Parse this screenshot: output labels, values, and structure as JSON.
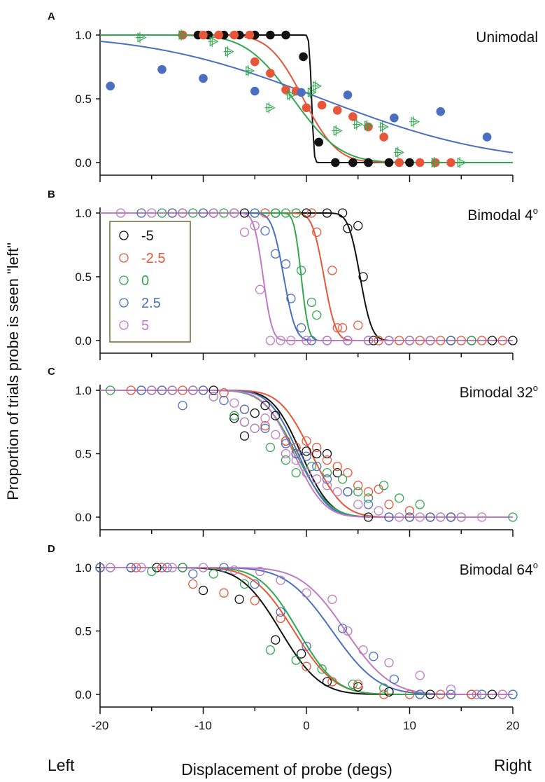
{
  "figure": {
    "ylabel": "Proportion of trials probe is seen \"left\"",
    "xlabel": "Displacement of probe (degs)",
    "left_label": "Left",
    "right_label": "Right",
    "xticks": [
      "-20",
      "-10",
      "0",
      "10",
      "20"
    ],
    "xlim": [
      -20,
      20
    ],
    "ylim": [
      0,
      1
    ],
    "colors": {
      "-5": "#111111",
      "-2.5": "#e8563a",
      "0": "#2fa84f",
      "2.5": "#4a6fc0",
      "5": "#c07ac4"
    }
  },
  "chart_data": [
    {
      "type": "scatter",
      "panel_letter": "A",
      "title": "Unimodal",
      "title_sup": "",
      "yticks": [
        "0.0",
        "0.5",
        "1.0"
      ],
      "xlim": [
        -20,
        20
      ],
      "ylim": [
        0,
        1
      ],
      "series": [
        {
          "key": "black",
          "color": "#111111",
          "marker": "filled",
          "mu": 0.5,
          "sigma": 0.18,
          "x": [
            -12,
            -10.5,
            -9.5,
            -8,
            -6.5,
            -5,
            -3.5,
            -2,
            -0.3,
            1.2,
            2.8,
            4.5,
            6,
            8,
            10
          ],
          "y": [
            1,
            1,
            1,
            1,
            1,
            1,
            1,
            1,
            0.83,
            0.16,
            0,
            0,
            0,
            0,
            0
          ]
        },
        {
          "key": "orange",
          "color": "#e8563a",
          "marker": "filled",
          "mu": -0.3,
          "sigma": 2.6,
          "x": [
            -12,
            -10,
            -8.5,
            -7,
            -5.5,
            -5,
            -3.5,
            -2,
            -1,
            0,
            1.5,
            3,
            4.5,
            6,
            7.5,
            9,
            11,
            12.5,
            14
          ],
          "y": [
            1,
            1,
            1,
            1,
            1,
            0.79,
            0.7,
            0.57,
            0.56,
            0.43,
            0.45,
            0.41,
            0.36,
            0.28,
            0.2,
            0,
            0,
            0,
            0
          ]
        },
        {
          "key": "green",
          "color": "#2fa84f",
          "marker": "triangle",
          "mu": -1.3,
          "sigma": 3.6,
          "x": [
            -16,
            -12,
            -9,
            -7.5,
            -5.5,
            -3.5,
            -1.5,
            0.5,
            1,
            3,
            5,
            6,
            7.5,
            9,
            10.5,
            12.5,
            15
          ],
          "y": [
            0.98,
            1,
            0.95,
            0.87,
            0.72,
            0.43,
            0.53,
            0.55,
            0.6,
            0.25,
            0.3,
            0.29,
            0.28,
            0.08,
            0.32,
            0,
            0
          ]
        },
        {
          "key": "blue",
          "color": "#4a6fc0",
          "marker": "filled",
          "mu": 1.5,
          "sigma": 13,
          "x": [
            -19,
            -14,
            -10,
            -5,
            -0.5,
            4,
            8.5,
            13,
            17.5
          ],
          "y": [
            0.6,
            0.73,
            0.66,
            0.56,
            0.55,
            0.53,
            0.35,
            0.4,
            0.2
          ]
        }
      ]
    },
    {
      "type": "scatter",
      "panel_letter": "B",
      "title": "Bimodal 4",
      "title_sup": "o",
      "yticks": [
        "0.0",
        "0.5",
        "1.0"
      ],
      "xlim": [
        -20,
        20
      ],
      "ylim": [
        0,
        1
      ],
      "legend": {
        "placement": "top-left",
        "entries": [
          "-5",
          "-2.5",
          "0",
          "2.5",
          "5"
        ]
      },
      "series": [
        {
          "key": "-5",
          "color": "#111111",
          "marker": "open",
          "mu": 5.2,
          "sigma": 0.9,
          "x": [
            -12,
            -9,
            -6,
            -3,
            0,
            2,
            3.5,
            4,
            5,
            5.5,
            6.5,
            8,
            10,
            12,
            14,
            16,
            18,
            20
          ],
          "y": [
            1,
            1,
            1,
            1,
            1,
            1,
            1,
            0.88,
            0.9,
            0.5,
            0,
            0,
            0,
            0,
            0,
            0,
            0,
            0
          ]
        },
        {
          "key": "-2.5",
          "color": "#e8563a",
          "marker": "open",
          "mu": 1.7,
          "sigma": 0.9,
          "x": [
            -13,
            -10,
            -7,
            -4,
            -1,
            0.5,
            1,
            2.5,
            3,
            3.5,
            5,
            7,
            9,
            11,
            13,
            15,
            17,
            19
          ],
          "y": [
            1,
            1,
            1,
            1,
            1,
            1,
            0.85,
            0.55,
            0.1,
            0.1,
            0.12,
            0,
            0,
            0,
            0,
            0,
            0,
            0
          ]
        },
        {
          "key": "0",
          "color": "#2fa84f",
          "marker": "open",
          "mu": -0.5,
          "sigma": 0.55,
          "x": [
            -14,
            -11,
            -8,
            -5,
            -3,
            -2,
            -1,
            -0.5,
            0.5,
            1,
            2,
            4,
            6,
            8,
            10,
            12,
            14,
            16
          ],
          "y": [
            1,
            1,
            1,
            1,
            1,
            1,
            1,
            0.55,
            0.3,
            0.2,
            0,
            0,
            0,
            0,
            0,
            0,
            0,
            0
          ]
        },
        {
          "key": "2.5",
          "color": "#4a6fc0",
          "marker": "open",
          "mu": -2.2,
          "sigma": 0.9,
          "x": [
            -16,
            -13,
            -10,
            -7,
            -5,
            -4,
            -3,
            -2,
            -1.5,
            -0.5,
            0.5,
            2,
            4,
            6,
            8,
            10,
            12,
            14
          ],
          "y": [
            1,
            1,
            1,
            1,
            1,
            0.86,
            0.68,
            0.6,
            0.33,
            0.1,
            0,
            0,
            0,
            0,
            0,
            0,
            0,
            0
          ]
        },
        {
          "key": "5",
          "color": "#c07ac4",
          "marker": "open",
          "mu": -4.2,
          "sigma": 0.7,
          "x": [
            -18,
            -15,
            -12,
            -9,
            -7,
            -6,
            -5,
            -4.5,
            -3.5,
            -2.5,
            -1.5,
            0,
            2,
            4,
            6,
            8,
            10,
            12
          ],
          "y": [
            1,
            1,
            1,
            1,
            1,
            0.85,
            0.9,
            0.4,
            0,
            0,
            0,
            0,
            0,
            0,
            0,
            0,
            0,
            0
          ]
        }
      ]
    },
    {
      "type": "scatter",
      "panel_letter": "C",
      "title": "Bimodal 32",
      "title_sup": "o",
      "yticks": [
        "0.0",
        "0.5",
        "1.0"
      ],
      "xlim": [
        -20,
        20
      ],
      "ylim": [
        0,
        1
      ],
      "series": [
        {
          "key": "-5",
          "color": "#111111",
          "marker": "open",
          "mu": -0.5,
          "sigma": 2.2,
          "x": [
            -15,
            -13,
            -11,
            -9,
            -7,
            -6,
            -5,
            -4,
            -3,
            -2,
            -1,
            0,
            1,
            2,
            3,
            4,
            6,
            8,
            10,
            12,
            14
          ],
          "y": [
            1,
            1,
            1,
            1,
            0.78,
            0.64,
            0.82,
            0.88,
            0.8,
            0.6,
            0.5,
            0.52,
            0.5,
            0.5,
            0.35,
            0.2,
            0,
            0,
            0,
            0,
            0
          ]
        },
        {
          "key": "-2.5",
          "color": "#e8563a",
          "marker": "open",
          "mu": 0.5,
          "sigma": 2.4,
          "x": [
            -17,
            -14,
            -12,
            -10,
            -8,
            -6,
            -4,
            -2,
            -1,
            0,
            1,
            2,
            3,
            4,
            5,
            6,
            7,
            8,
            10,
            12,
            14
          ],
          "y": [
            1,
            1,
            1,
            1,
            0.98,
            0.85,
            0.72,
            0.6,
            0.55,
            0.6,
            0.55,
            0.45,
            0.4,
            0.35,
            0.25,
            0.2,
            0.22,
            0.1,
            0.05,
            0,
            0
          ]
        },
        {
          "key": "0",
          "color": "#2fa84f",
          "marker": "open",
          "mu": -1,
          "sigma": 2.5,
          "x": [
            -19,
            -16,
            -13,
            -11,
            -9,
            -7,
            -6,
            -5,
            -3.5,
            -2,
            -1,
            0.5,
            2,
            3.5,
            5,
            6,
            7.5,
            9,
            11,
            13,
            15,
            20
          ],
          "y": [
            1,
            1,
            1,
            1,
            0.95,
            0.8,
            0.75,
            0.7,
            0.55,
            0.45,
            0.35,
            0.4,
            0.35,
            0.3,
            0.2,
            0.15,
            0.25,
            0.15,
            0.1,
            0,
            0,
            0
          ]
        },
        {
          "key": "2.5",
          "color": "#4a6fc0",
          "marker": "open",
          "mu": -0.8,
          "sigma": 2.2,
          "x": [
            -16,
            -14,
            -12,
            -10,
            -8,
            -6,
            -4,
            -2,
            -1,
            0,
            1,
            2,
            4,
            6,
            8,
            10,
            12,
            14
          ],
          "y": [
            1,
            1,
            0.88,
            1,
            0.92,
            0.85,
            0.7,
            0.58,
            0.5,
            0.48,
            0.4,
            0.3,
            0.2,
            0.1,
            0,
            0,
            0,
            0
          ]
        },
        {
          "key": "5",
          "color": "#c07ac4",
          "marker": "open",
          "mu": -1.2,
          "sigma": 2.3,
          "x": [
            -15,
            -13,
            -11,
            -9,
            -7,
            -6,
            -5,
            -4,
            -3,
            -2,
            -1,
            0,
            1,
            2,
            3,
            5,
            7,
            9,
            11,
            13,
            15,
            17
          ],
          "y": [
            1,
            1,
            1,
            0.95,
            0.9,
            0.75,
            0.7,
            0.78,
            0.65,
            0.5,
            0.45,
            0.35,
            0.3,
            0.25,
            0.2,
            0.1,
            0.05,
            0,
            0,
            0,
            0,
            0
          ]
        }
      ]
    },
    {
      "type": "scatter",
      "panel_letter": "D",
      "title": "Bimodal 64",
      "title_sup": "o",
      "yticks": [
        "0.0",
        "0.5",
        "1.0"
      ],
      "xlim": [
        -20,
        20
      ],
      "ylim": [
        0,
        1
      ],
      "series": [
        {
          "key": "-5",
          "color": "#111111",
          "marker": "open",
          "mu": -2.5,
          "sigma": 3.0,
          "x": [
            -20,
            -17,
            -14.5,
            -12,
            -10,
            -6.5,
            -3,
            -0.5,
            2,
            5,
            8,
            12,
            16,
            18
          ],
          "y": [
            1,
            1,
            1,
            1,
            0.82,
            0.75,
            0.43,
            0.32,
            0.1,
            0.06,
            0.02,
            0,
            0,
            0
          ]
        },
        {
          "key": "-2.5",
          "color": "#e8563a",
          "marker": "open",
          "mu": -1.2,
          "sigma": 3.1,
          "x": [
            -20,
            -16.5,
            -14,
            -11,
            -8,
            -5,
            -2.5,
            0,
            2.5,
            5,
            7.5,
            10,
            13,
            16,
            19
          ],
          "y": [
            1,
            1,
            1,
            0.87,
            0.8,
            0.74,
            0.6,
            0.22,
            0.1,
            0.08,
            0,
            0,
            0,
            0,
            0
          ]
        },
        {
          "key": "0",
          "color": "#2fa84f",
          "marker": "open",
          "mu": -0.8,
          "sigma": 2.9,
          "x": [
            -19,
            -15,
            -12,
            -9,
            -6,
            -3.5,
            -1,
            1.5,
            4.5,
            7.5,
            11,
            14,
            17,
            20
          ],
          "y": [
            1,
            0.97,
            1,
            0.95,
            0.87,
            0.35,
            0.27,
            0.2,
            0.08,
            0.05,
            0,
            0,
            0,
            0
          ]
        },
        {
          "key": "2.5",
          "color": "#4a6fc0",
          "marker": "open",
          "mu": 2.5,
          "sigma": 3.5,
          "x": [
            -20,
            -17,
            -13.5,
            -11,
            -8,
            -5,
            -2.5,
            0,
            3.5,
            6.5,
            8.5,
            11,
            14,
            17,
            20
          ],
          "y": [
            1,
            1,
            1,
            0.95,
            1,
            0.87,
            0.65,
            0.38,
            0.52,
            0.3,
            0.12,
            0,
            0,
            0,
            0
          ]
        },
        {
          "key": "5",
          "color": "#c07ac4",
          "marker": "open",
          "mu": 3.8,
          "sigma": 3.4,
          "x": [
            -19,
            -16,
            -13,
            -10,
            -7,
            -4.5,
            -2.5,
            0,
            2.5,
            4,
            5.5,
            8,
            11,
            14,
            16.5,
            19
          ],
          "y": [
            1,
            1,
            1,
            1,
            0.98,
            0.97,
            0.9,
            0.8,
            0.75,
            0.5,
            0.35,
            0.25,
            0.15,
            0.04,
            0,
            0
          ]
        }
      ]
    }
  ]
}
